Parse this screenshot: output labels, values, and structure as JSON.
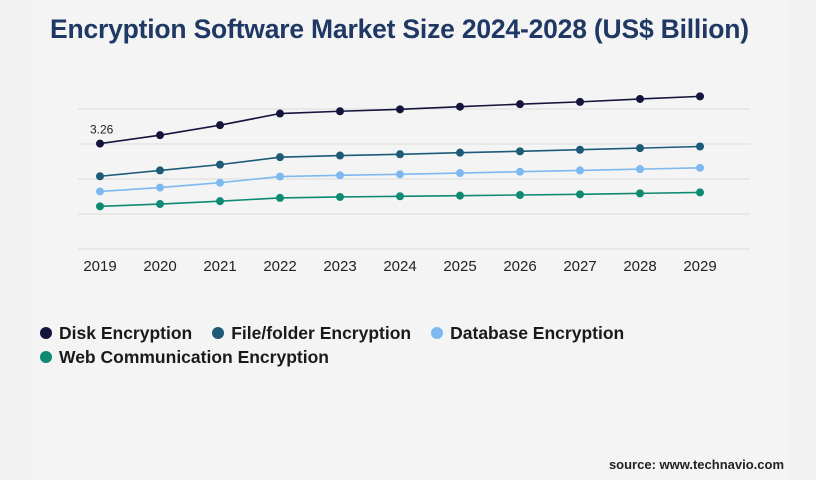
{
  "title": "Encryption Software Market Size 2024-2028 (US$ Billion)",
  "source": "source: www.technavio.com",
  "chart_data": {
    "type": "line",
    "title": "Encryption Software Market Size 2024-2028 (US$ Billion)",
    "xlabel": "",
    "ylabel": "",
    "categories": [
      "2019",
      "2020",
      "2021",
      "2022",
      "2023",
      "2024",
      "2025",
      "2026",
      "2027",
      "2028",
      "2029"
    ],
    "grid": true,
    "legend_position": "bottom-left",
    "ylim": [
      0,
      6
    ],
    "series": [
      {
        "name": "Disk Encryption",
        "color": "#14143c",
        "values": [
          3.26,
          3.52,
          3.83,
          4.19,
          4.26,
          4.32,
          4.4,
          4.48,
          4.55,
          4.64,
          4.72
        ],
        "labels": [
          "3.26",
          "",
          "",
          "",
          "",
          "",
          "",
          "",
          "",
          "",
          ""
        ]
      },
      {
        "name": "File/folder Encryption",
        "color": "#1c5a78",
        "values": [
          2.25,
          2.43,
          2.61,
          2.84,
          2.89,
          2.93,
          2.98,
          3.02,
          3.07,
          3.12,
          3.17
        ],
        "labels": [
          "",
          "",
          "",
          "",
          "",
          "",
          "",
          "",
          "",
          "",
          ""
        ]
      },
      {
        "name": "Database Encryption",
        "color": "#7db9f0",
        "values": [
          1.78,
          1.9,
          2.05,
          2.24,
          2.28,
          2.31,
          2.35,
          2.39,
          2.43,
          2.47,
          2.51
        ],
        "labels": [
          "",
          "",
          "",
          "",
          "",
          "",
          "",
          "",
          "",
          "",
          ""
        ]
      },
      {
        "name": "Web Communication Encryption",
        "color": "#0e8a72",
        "values": [
          1.32,
          1.39,
          1.48,
          1.58,
          1.61,
          1.63,
          1.65,
          1.67,
          1.69,
          1.72,
          1.75
        ],
        "labels": [
          "",
          "",
          "",
          "",
          "",
          "",
          "",
          "",
          "",
          "",
          ""
        ]
      }
    ]
  }
}
